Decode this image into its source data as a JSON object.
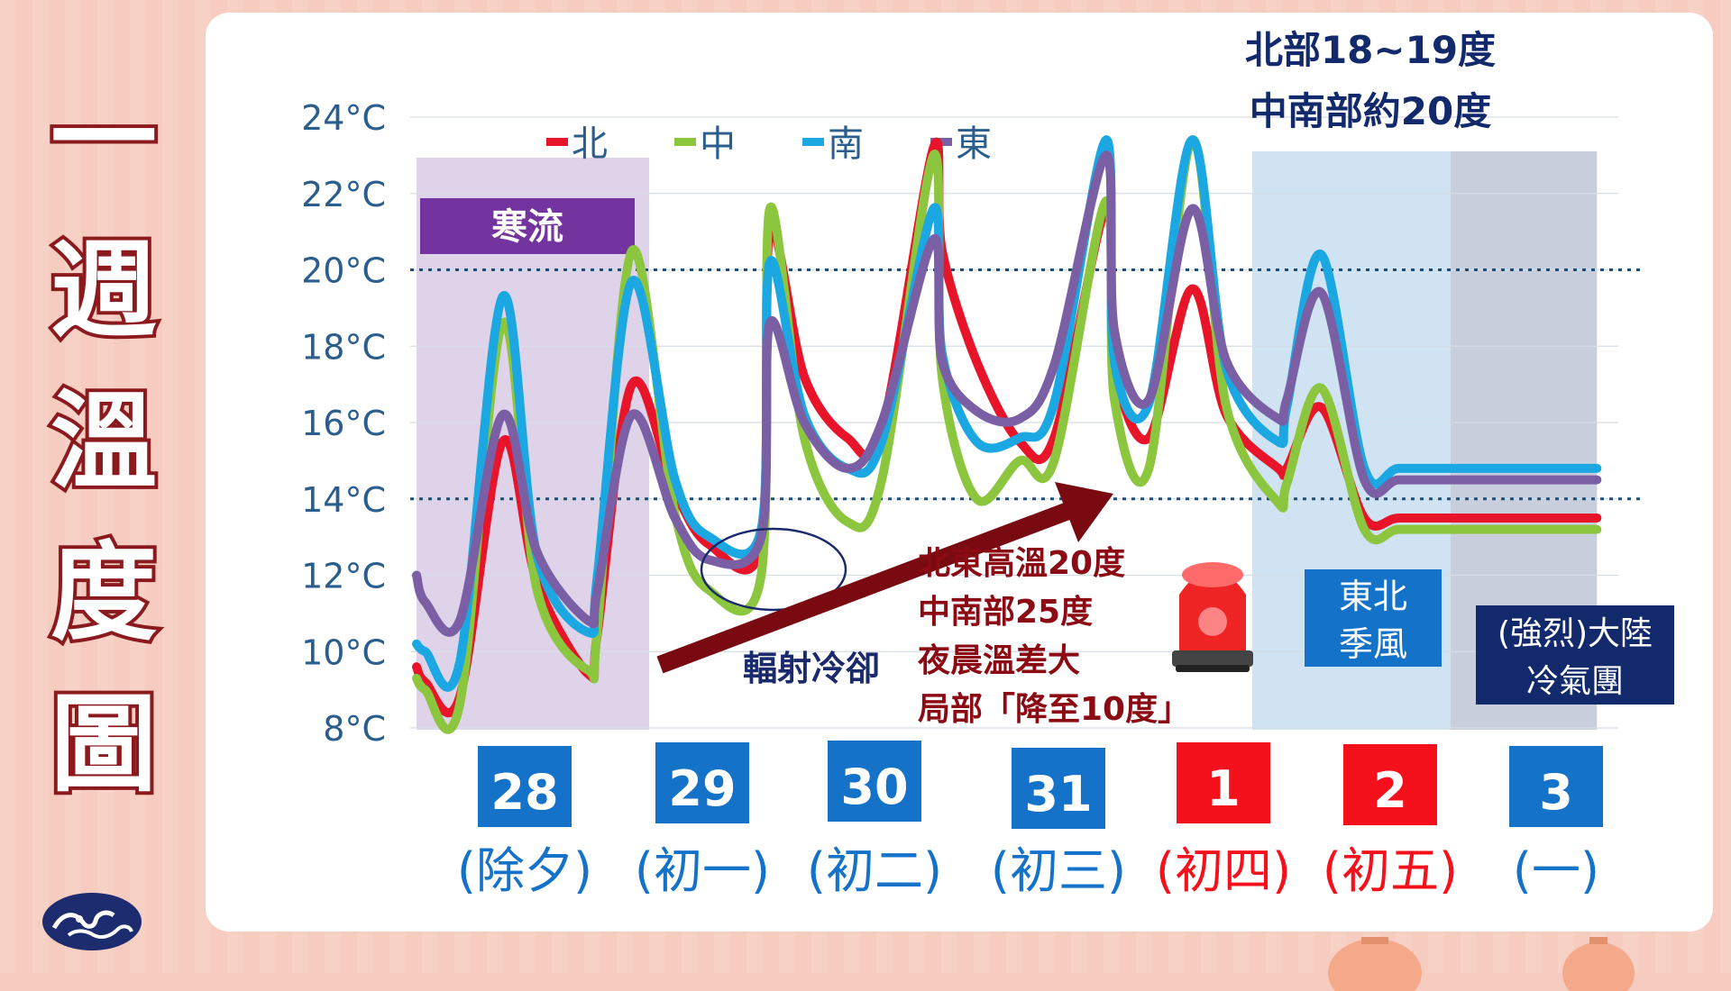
{
  "side_title": [
    "一",
    "週",
    "溫",
    "度",
    "圖"
  ],
  "colors": {
    "north": "#e8142a",
    "central": "#8cc63f",
    "south": "#1ba7e2",
    "east": "#7b5fa5",
    "title_stroke": "#8b1a1f",
    "day_blue": "#1572c9",
    "day_red": "#f5111b",
    "arrow": "#7a0a12"
  },
  "chart_data": {
    "type": "line",
    "title": "一週溫度圖",
    "ylabel": "",
    "y_unit": "°C",
    "ylim": [
      8,
      24
    ],
    "yticks": [
      "24°C",
      "22°C",
      "20°C",
      "18°C",
      "16°C",
      "14°C",
      "12°C",
      "10°C",
      "8°C"
    ],
    "yticks_values": [
      24,
      22,
      20,
      18,
      16,
      14,
      12,
      10,
      8
    ],
    "reference_lines": [
      20,
      14
    ],
    "x_unit": "day",
    "categories": [
      {
        "date": "28",
        "label": "(除夕)",
        "color": "blue"
      },
      {
        "date": "29",
        "label": "(初一)",
        "color": "blue"
      },
      {
        "date": "30",
        "label": "(初二)",
        "color": "blue"
      },
      {
        "date": "31",
        "label": "(初三)",
        "color": "blue"
      },
      {
        "date": "1",
        "label": "(初四)",
        "color": "red"
      },
      {
        "date": "2",
        "label": "(初五)",
        "color": "red"
      },
      {
        "date": "3",
        "label": "(一)",
        "color": "blue"
      }
    ],
    "legend": [
      "北",
      "中",
      "南",
      "東"
    ],
    "x": [
      0,
      0.05,
      0.25,
      0.5,
      0.7,
      1.0,
      1.05,
      1.25,
      1.5,
      1.7,
      2.0,
      2.05,
      2.25,
      2.5,
      2.7,
      3.0,
      3.05,
      3.25,
      3.5,
      3.7,
      4.0,
      4.05,
      4.25,
      4.5,
      4.7,
      5.0,
      5.05,
      5.25,
      5.5,
      5.7,
      6.0,
      6.05,
      6.25,
      6.5,
      6.7,
      7.0
    ],
    "series": [
      {
        "name": "北",
        "key": "north",
        "values": [
          9.6,
          9.2,
          8.8,
          15.5,
          11.8,
          9.4,
          10.5,
          17.0,
          14.2,
          12.8,
          12.8,
          21.0,
          17.2,
          15.6,
          15.8,
          23.2,
          20.5,
          17.6,
          15.5,
          15.6,
          21.6,
          17.5,
          15.6,
          19.5,
          16.2,
          14.8,
          14.8,
          16.4,
          13.5,
          13.5,
          13.5,
          13.5,
          13.5,
          13.5,
          13.5,
          13.5
        ]
      },
      {
        "name": "中",
        "key": "central",
        "values": [
          9.3,
          9.0,
          8.6,
          18.6,
          11.6,
          9.5,
          10.6,
          20.5,
          13.6,
          11.6,
          12.0,
          21.6,
          15.6,
          13.4,
          14.5,
          23.0,
          17.2,
          14.0,
          15.0,
          15.0,
          21.8,
          16.6,
          14.8,
          23.4,
          16.4,
          13.9,
          14.4,
          16.9,
          13.2,
          13.2,
          13.2,
          13.2,
          13.2,
          13.2,
          13.2,
          13.2
        ]
      },
      {
        "name": "南",
        "key": "south",
        "values": [
          10.2,
          10.0,
          9.7,
          19.3,
          12.5,
          10.5,
          12.0,
          19.7,
          14.5,
          13.0,
          13.2,
          20.2,
          16.2,
          14.8,
          15.5,
          21.6,
          17.8,
          15.5,
          15.6,
          16.5,
          23.4,
          17.6,
          16.5,
          23.4,
          17.4,
          15.5,
          16.4,
          20.4,
          14.8,
          14.8,
          14.8,
          14.8,
          14.8,
          14.8,
          14.8,
          14.8
        ]
      },
      {
        "name": "東",
        "key": "east",
        "values": [
          12.0,
          11.3,
          10.8,
          16.2,
          12.6,
          10.8,
          11.6,
          16.2,
          13.5,
          12.4,
          13.0,
          18.6,
          16.0,
          14.8,
          16.0,
          20.8,
          17.6,
          16.3,
          16.1,
          17.5,
          23.0,
          18.4,
          16.6,
          21.6,
          17.6,
          16.1,
          16.6,
          19.4,
          14.5,
          14.5,
          14.5,
          14.5,
          14.5,
          14.5,
          14.5,
          14.5
        ]
      }
    ],
    "regions": [
      {
        "label": "寒流",
        "from": 0,
        "to": 1.35
      },
      {
        "label": "東北季風",
        "from": 4.85,
        "to": 6.0
      },
      {
        "label": "(強烈)大陸冷氣團",
        "from": 6.0,
        "to": 6.85
      }
    ],
    "annotations": {
      "top_line1": "北部18~19度",
      "top_line2": "中南部約20度",
      "middle_lines": [
        "北東高溫20度",
        "中南部25度",
        "夜晨溫差大",
        "局部「降至10度」"
      ],
      "radiation": "輻射冷卻",
      "cold_wave": "寒流",
      "ne_monsoon": [
        "東北",
        "季風"
      ],
      "continental": [
        "(強烈)大陸",
        "冷氣團"
      ]
    }
  }
}
